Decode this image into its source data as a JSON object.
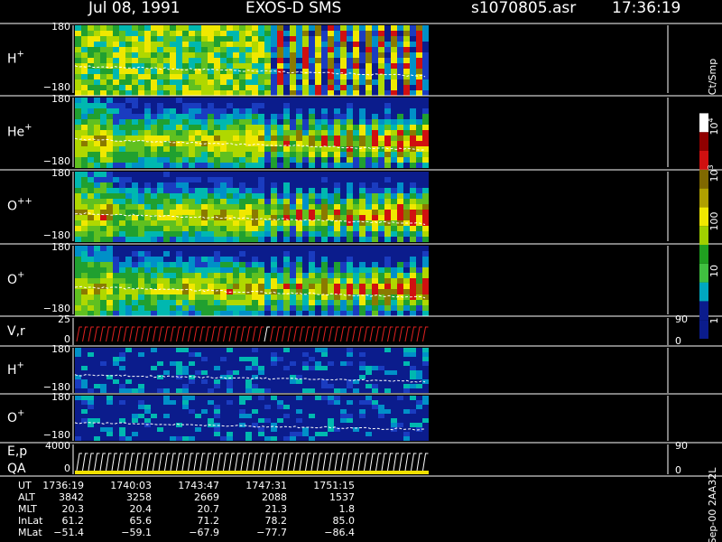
{
  "header": {
    "date": "Jul 08, 1991",
    "instrument": "EXOS-D SMS",
    "file": "s1070805.asr",
    "time": "17:36:19"
  },
  "panels": [
    {
      "label": "H",
      "sup": "+",
      "ticks": [
        "180",
        "−180"
      ]
    },
    {
      "label": "He",
      "sup": "+",
      "ticks": [
        "180",
        "−180"
      ]
    },
    {
      "label": "O",
      "sup": "++",
      "ticks": [
        "180",
        "−180"
      ]
    },
    {
      "label": "O",
      "sup": "+",
      "ticks": [
        "180",
        "−180"
      ]
    },
    {
      "label": "V,r",
      "ticks": [
        "25",
        "0"
      ],
      "right_ticks": [
        "90",
        "0"
      ]
    },
    {
      "label": "H",
      "sup": "+",
      "ticks": [
        "180",
        "−180"
      ]
    },
    {
      "label": "O",
      "sup": "+",
      "ticks": [
        "180",
        "−180"
      ]
    },
    {
      "label": "E,p",
      "label2": "QA",
      "ticks": [
        "4000",
        "0"
      ],
      "right_ticks": [
        "90",
        "0"
      ]
    }
  ],
  "colorbar": {
    "title": "Ct/Smp",
    "ticks": [
      {
        "base": "10",
        "exp": "4"
      },
      {
        "base": "10",
        "exp": "3"
      },
      {
        "base": "100"
      },
      {
        "base": "10"
      },
      {
        "base": "1"
      }
    ]
  },
  "table": {
    "headers": [
      "UT",
      "ALT",
      "MLT",
      "InLat",
      "MLat"
    ],
    "rows": [
      [
        "1736:19",
        "1740:03",
        "1743:47",
        "1747:31",
        "1751:15"
      ],
      [
        "3842",
        "3258",
        "2669",
        "2088",
        "1537"
      ],
      [
        "20.3",
        "20.4",
        "20.7",
        "21.3",
        "1.8"
      ],
      [
        "61.2",
        "65.6",
        "71.2",
        "78.2",
        "85.0"
      ],
      [
        "−51.4",
        "−59.1",
        "−67.9",
        "−77.7",
        "−86.4"
      ]
    ]
  },
  "footer": "Sep-00 2AA32L"
}
